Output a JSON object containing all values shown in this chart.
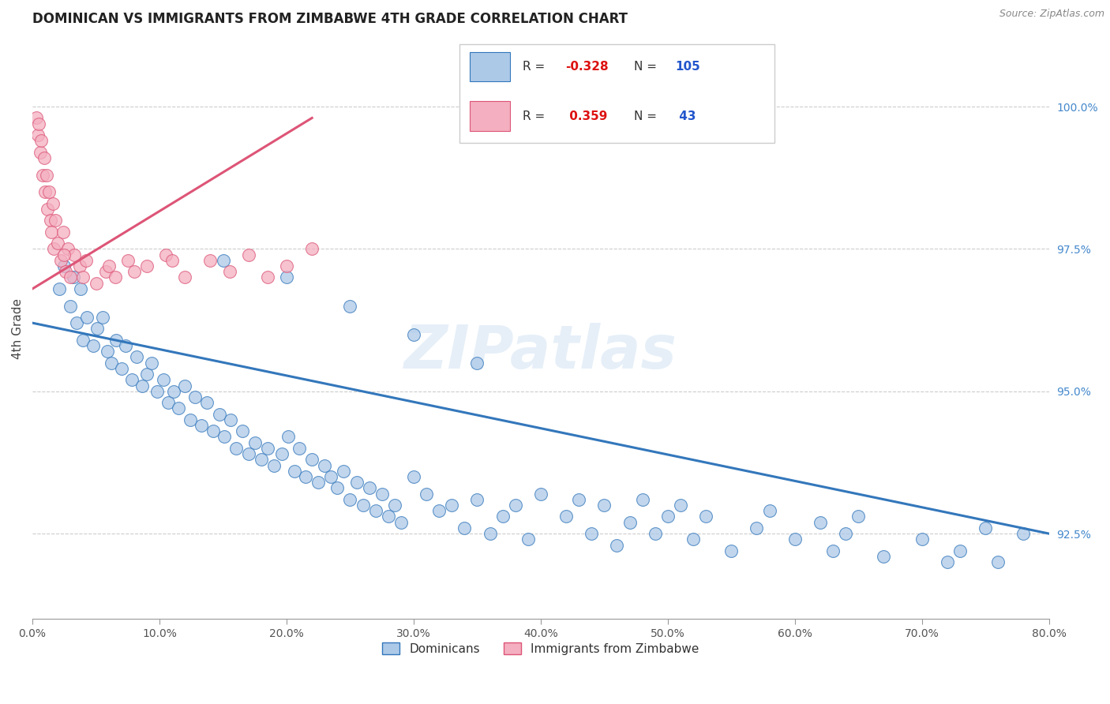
{
  "title": "DOMINICAN VS IMMIGRANTS FROM ZIMBABWE 4TH GRADE CORRELATION CHART",
  "source": "Source: ZipAtlas.com",
  "xlabel_vals": [
    0.0,
    10.0,
    20.0,
    30.0,
    40.0,
    50.0,
    60.0,
    70.0,
    80.0
  ],
  "ylabel_vals": [
    92.5,
    95.0,
    97.5,
    100.0
  ],
  "ylabel_label": "4th Grade",
  "xlim": [
    0.0,
    80.0
  ],
  "ylim": [
    91.0,
    101.2
  ],
  "r_blue": -0.328,
  "n_blue": 105,
  "r_pink": 0.359,
  "n_pink": 43,
  "blue_color": "#adc9e8",
  "pink_color": "#f4afc0",
  "blue_line_color": "#3377bb",
  "pink_line_color": "#dd5577",
  "legend_label_blue": "Dominicans",
  "legend_label_pink": "Immigrants from Zimbabwe",
  "watermark": "ZIPatlas",
  "blue_scatter_x": [
    2.1,
    2.5,
    3.0,
    3.2,
    3.5,
    3.8,
    4.0,
    4.3,
    4.8,
    5.1,
    5.5,
    5.9,
    6.2,
    6.6,
    7.0,
    7.3,
    7.8,
    8.2,
    8.6,
    9.0,
    9.4,
    9.8,
    10.3,
    10.7,
    11.1,
    11.5,
    12.0,
    12.4,
    12.8,
    13.3,
    13.7,
    14.2,
    14.7,
    15.1,
    15.6,
    16.0,
    16.5,
    17.0,
    17.5,
    18.0,
    18.5,
    19.0,
    19.6,
    20.1,
    20.6,
    21.0,
    21.5,
    22.0,
    22.5,
    23.0,
    23.5,
    24.0,
    24.5,
    25.0,
    25.5,
    26.0,
    26.5,
    27.0,
    27.5,
    28.0,
    28.5,
    29.0,
    30.0,
    31.0,
    32.0,
    33.0,
    34.0,
    35.0,
    36.0,
    37.0,
    38.0,
    39.0,
    40.0,
    42.0,
    43.0,
    44.0,
    45.0,
    46.0,
    47.0,
    48.0,
    49.0,
    50.0,
    51.0,
    52.0,
    53.0,
    55.0,
    57.0,
    58.0,
    60.0,
    62.0,
    63.0,
    64.0,
    65.0,
    67.0,
    70.0,
    72.0,
    73.0,
    75.0,
    76.0,
    78.0,
    15.0,
    20.0,
    25.0,
    30.0,
    35.0
  ],
  "blue_scatter_y": [
    96.8,
    97.2,
    96.5,
    97.0,
    96.2,
    96.8,
    95.9,
    96.3,
    95.8,
    96.1,
    96.3,
    95.7,
    95.5,
    95.9,
    95.4,
    95.8,
    95.2,
    95.6,
    95.1,
    95.3,
    95.5,
    95.0,
    95.2,
    94.8,
    95.0,
    94.7,
    95.1,
    94.5,
    94.9,
    94.4,
    94.8,
    94.3,
    94.6,
    94.2,
    94.5,
    94.0,
    94.3,
    93.9,
    94.1,
    93.8,
    94.0,
    93.7,
    93.9,
    94.2,
    93.6,
    94.0,
    93.5,
    93.8,
    93.4,
    93.7,
    93.5,
    93.3,
    93.6,
    93.1,
    93.4,
    93.0,
    93.3,
    92.9,
    93.2,
    92.8,
    93.0,
    92.7,
    93.5,
    93.2,
    92.9,
    93.0,
    92.6,
    93.1,
    92.5,
    92.8,
    93.0,
    92.4,
    93.2,
    92.8,
    93.1,
    92.5,
    93.0,
    92.3,
    92.7,
    93.1,
    92.5,
    92.8,
    93.0,
    92.4,
    92.8,
    92.2,
    92.6,
    92.9,
    92.4,
    92.7,
    92.2,
    92.5,
    92.8,
    92.1,
    92.4,
    92.0,
    92.2,
    92.6,
    92.0,
    92.5,
    97.3,
    97.0,
    96.5,
    96.0,
    95.5
  ],
  "pink_scatter_x": [
    0.3,
    0.4,
    0.5,
    0.6,
    0.7,
    0.8,
    0.9,
    1.0,
    1.1,
    1.2,
    1.3,
    1.4,
    1.5,
    1.6,
    1.7,
    1.8,
    2.0,
    2.2,
    2.4,
    2.6,
    2.8,
    3.0,
    3.3,
    3.7,
    4.2,
    5.0,
    5.8,
    6.5,
    7.5,
    9.0,
    10.5,
    12.0,
    14.0,
    15.5,
    17.0,
    18.5,
    20.0,
    22.0,
    8.0,
    11.0,
    4.0,
    6.0,
    2.5
  ],
  "pink_scatter_y": [
    99.8,
    99.5,
    99.7,
    99.2,
    99.4,
    98.8,
    99.1,
    98.5,
    98.8,
    98.2,
    98.5,
    98.0,
    97.8,
    98.3,
    97.5,
    98.0,
    97.6,
    97.3,
    97.8,
    97.1,
    97.5,
    97.0,
    97.4,
    97.2,
    97.3,
    96.9,
    97.1,
    97.0,
    97.3,
    97.2,
    97.4,
    97.0,
    97.3,
    97.1,
    97.4,
    97.0,
    97.2,
    97.5,
    97.1,
    97.3,
    97.0,
    97.2,
    97.4
  ],
  "blue_trendline_x": [
    0.0,
    80.0
  ],
  "blue_trendline_y": [
    96.2,
    92.5
  ],
  "pink_trendline_x": [
    0.0,
    22.0
  ],
  "pink_trendline_y": [
    96.8,
    99.8
  ]
}
